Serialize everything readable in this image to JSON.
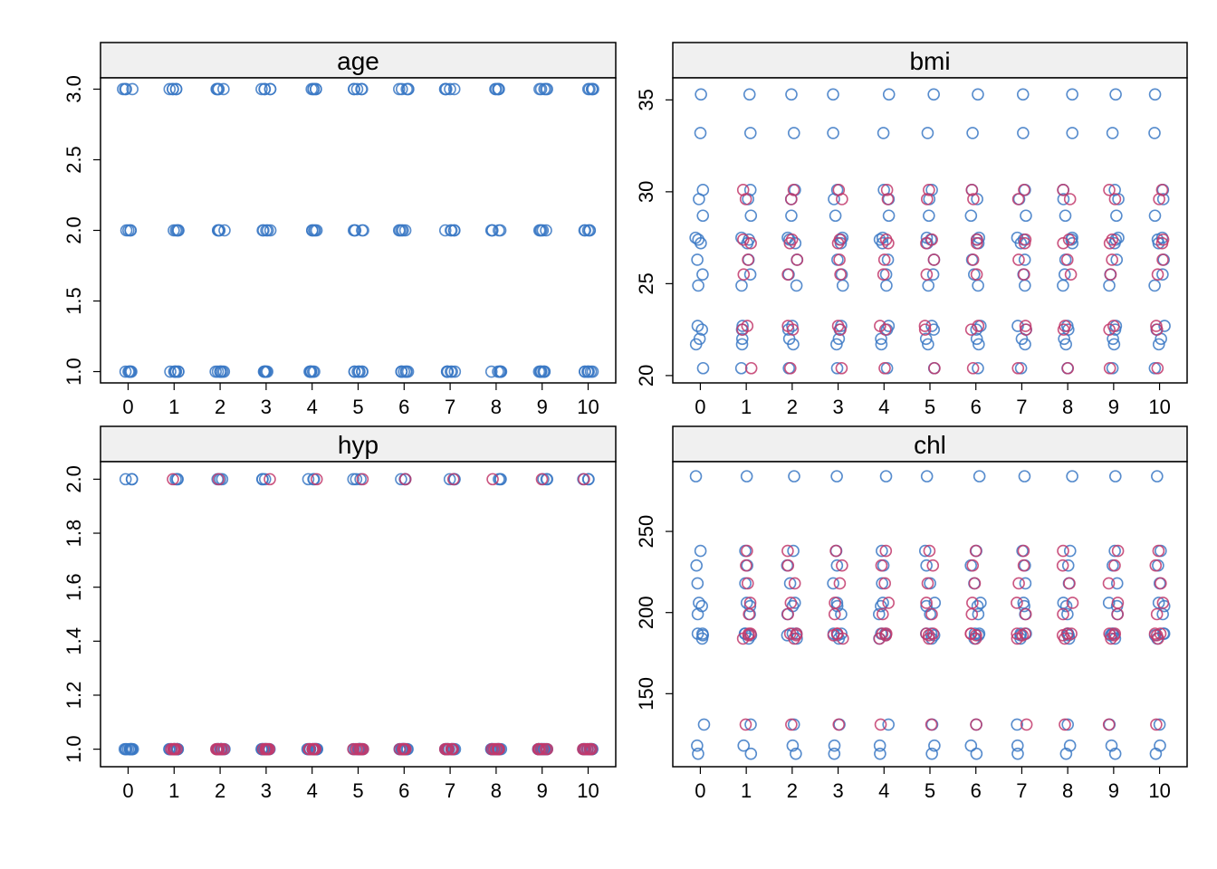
{
  "palette": {
    "observed": "#3a78c4",
    "imputed": "#c2386b",
    "strip_bg": "#f0f0f0",
    "frame": "#000000"
  },
  "chart_data": [
    {
      "type": "scatter",
      "panel": "age",
      "title": "age",
      "x_ticks": [
        0,
        1,
        2,
        3,
        4,
        5,
        6,
        7,
        8,
        9,
        10
      ],
      "y_ticks": [
        1.0,
        1.5,
        2.0,
        2.5,
        3.0
      ],
      "y_tick_labels": [
        "1.0",
        "1.5",
        "2.0",
        "2.5",
        "3.0"
      ],
      "xlim": [
        -0.6,
        10.6
      ],
      "ylim": [
        0.92,
        3.08
      ],
      "series": [
        {
          "role": "observed",
          "color": "#3a78c4",
          "values": [
            3,
            3,
            3,
            3,
            2,
            2,
            2,
            2,
            1,
            1,
            1,
            1,
            1,
            1
          ]
        },
        {
          "role": "imputed",
          "color": "#3a78c4",
          "values": [
            1,
            2,
            3
          ]
        }
      ]
    },
    {
      "type": "scatter",
      "panel": "bmi",
      "title": "bmi",
      "x_ticks": [
        0,
        1,
        2,
        3,
        4,
        5,
        6,
        7,
        8,
        9,
        10
      ],
      "y_ticks": [
        20,
        25,
        30,
        35
      ],
      "y_tick_labels": [
        "20",
        "25",
        "30",
        "35"
      ],
      "xlim": [
        -0.6,
        10.6
      ],
      "ylim": [
        19.6,
        36.2
      ],
      "series": [
        {
          "role": "observed",
          "color": "#3a78c4",
          "values": [
            35.3,
            33.2,
            30.1,
            29.6,
            28.7,
            27.5,
            27.4,
            27.2,
            26.3,
            25.5,
            24.9,
            22.7,
            22.5,
            22.0,
            21.7,
            20.4
          ]
        },
        {
          "role": "imputed",
          "color": "#c2386b",
          "values": [
            22.7,
            27.2,
            30.1,
            22.5,
            27.4,
            26.3,
            25.5,
            29.6,
            20.4
          ]
        }
      ]
    },
    {
      "type": "scatter",
      "panel": "hyp",
      "title": "hyp",
      "x_ticks": [
        0,
        1,
        2,
        3,
        4,
        5,
        6,
        7,
        8,
        9,
        10
      ],
      "y_ticks": [
        1.0,
        1.2,
        1.4,
        1.6,
        1.8,
        2.0
      ],
      "y_tick_labels": [
        "1.0",
        "1.2",
        "1.4",
        "1.6",
        "1.8",
        "2.0"
      ],
      "xlim": [
        -0.6,
        10.6
      ],
      "ylim": [
        0.935,
        2.065
      ],
      "series": [
        {
          "role": "observed",
          "color": "#3a78c4",
          "values": [
            2,
            2,
            2,
            1,
            1,
            1,
            1,
            1,
            1,
            1,
            1,
            1,
            1,
            1,
            1,
            1
          ]
        },
        {
          "role": "imputed",
          "color": "#c2386b",
          "values": [
            1,
            1,
            1,
            1,
            1,
            1,
            1,
            2
          ]
        }
      ]
    },
    {
      "type": "scatter",
      "panel": "chl",
      "title": "chl",
      "x_ticks": [
        0,
        1,
        2,
        3,
        4,
        5,
        6,
        7,
        8,
        9,
        10
      ],
      "y_ticks": [
        150,
        200,
        250
      ],
      "y_tick_labels": [
        "150",
        "200",
        "250"
      ],
      "xlim": [
        -0.6,
        10.6
      ],
      "ylim": [
        105,
        293
      ],
      "series": [
        {
          "role": "observed",
          "color": "#3a78c4",
          "values": [
            284,
            238,
            229,
            218,
            206,
            204,
            199,
            187,
            187,
            186,
            184,
            131,
            118,
            113
          ]
        },
        {
          "role": "imputed",
          "color": "#c2386b",
          "values": [
            187,
            186,
            238,
            218,
            206,
            184,
            229,
            131,
            199,
            187
          ]
        }
      ]
    }
  ]
}
